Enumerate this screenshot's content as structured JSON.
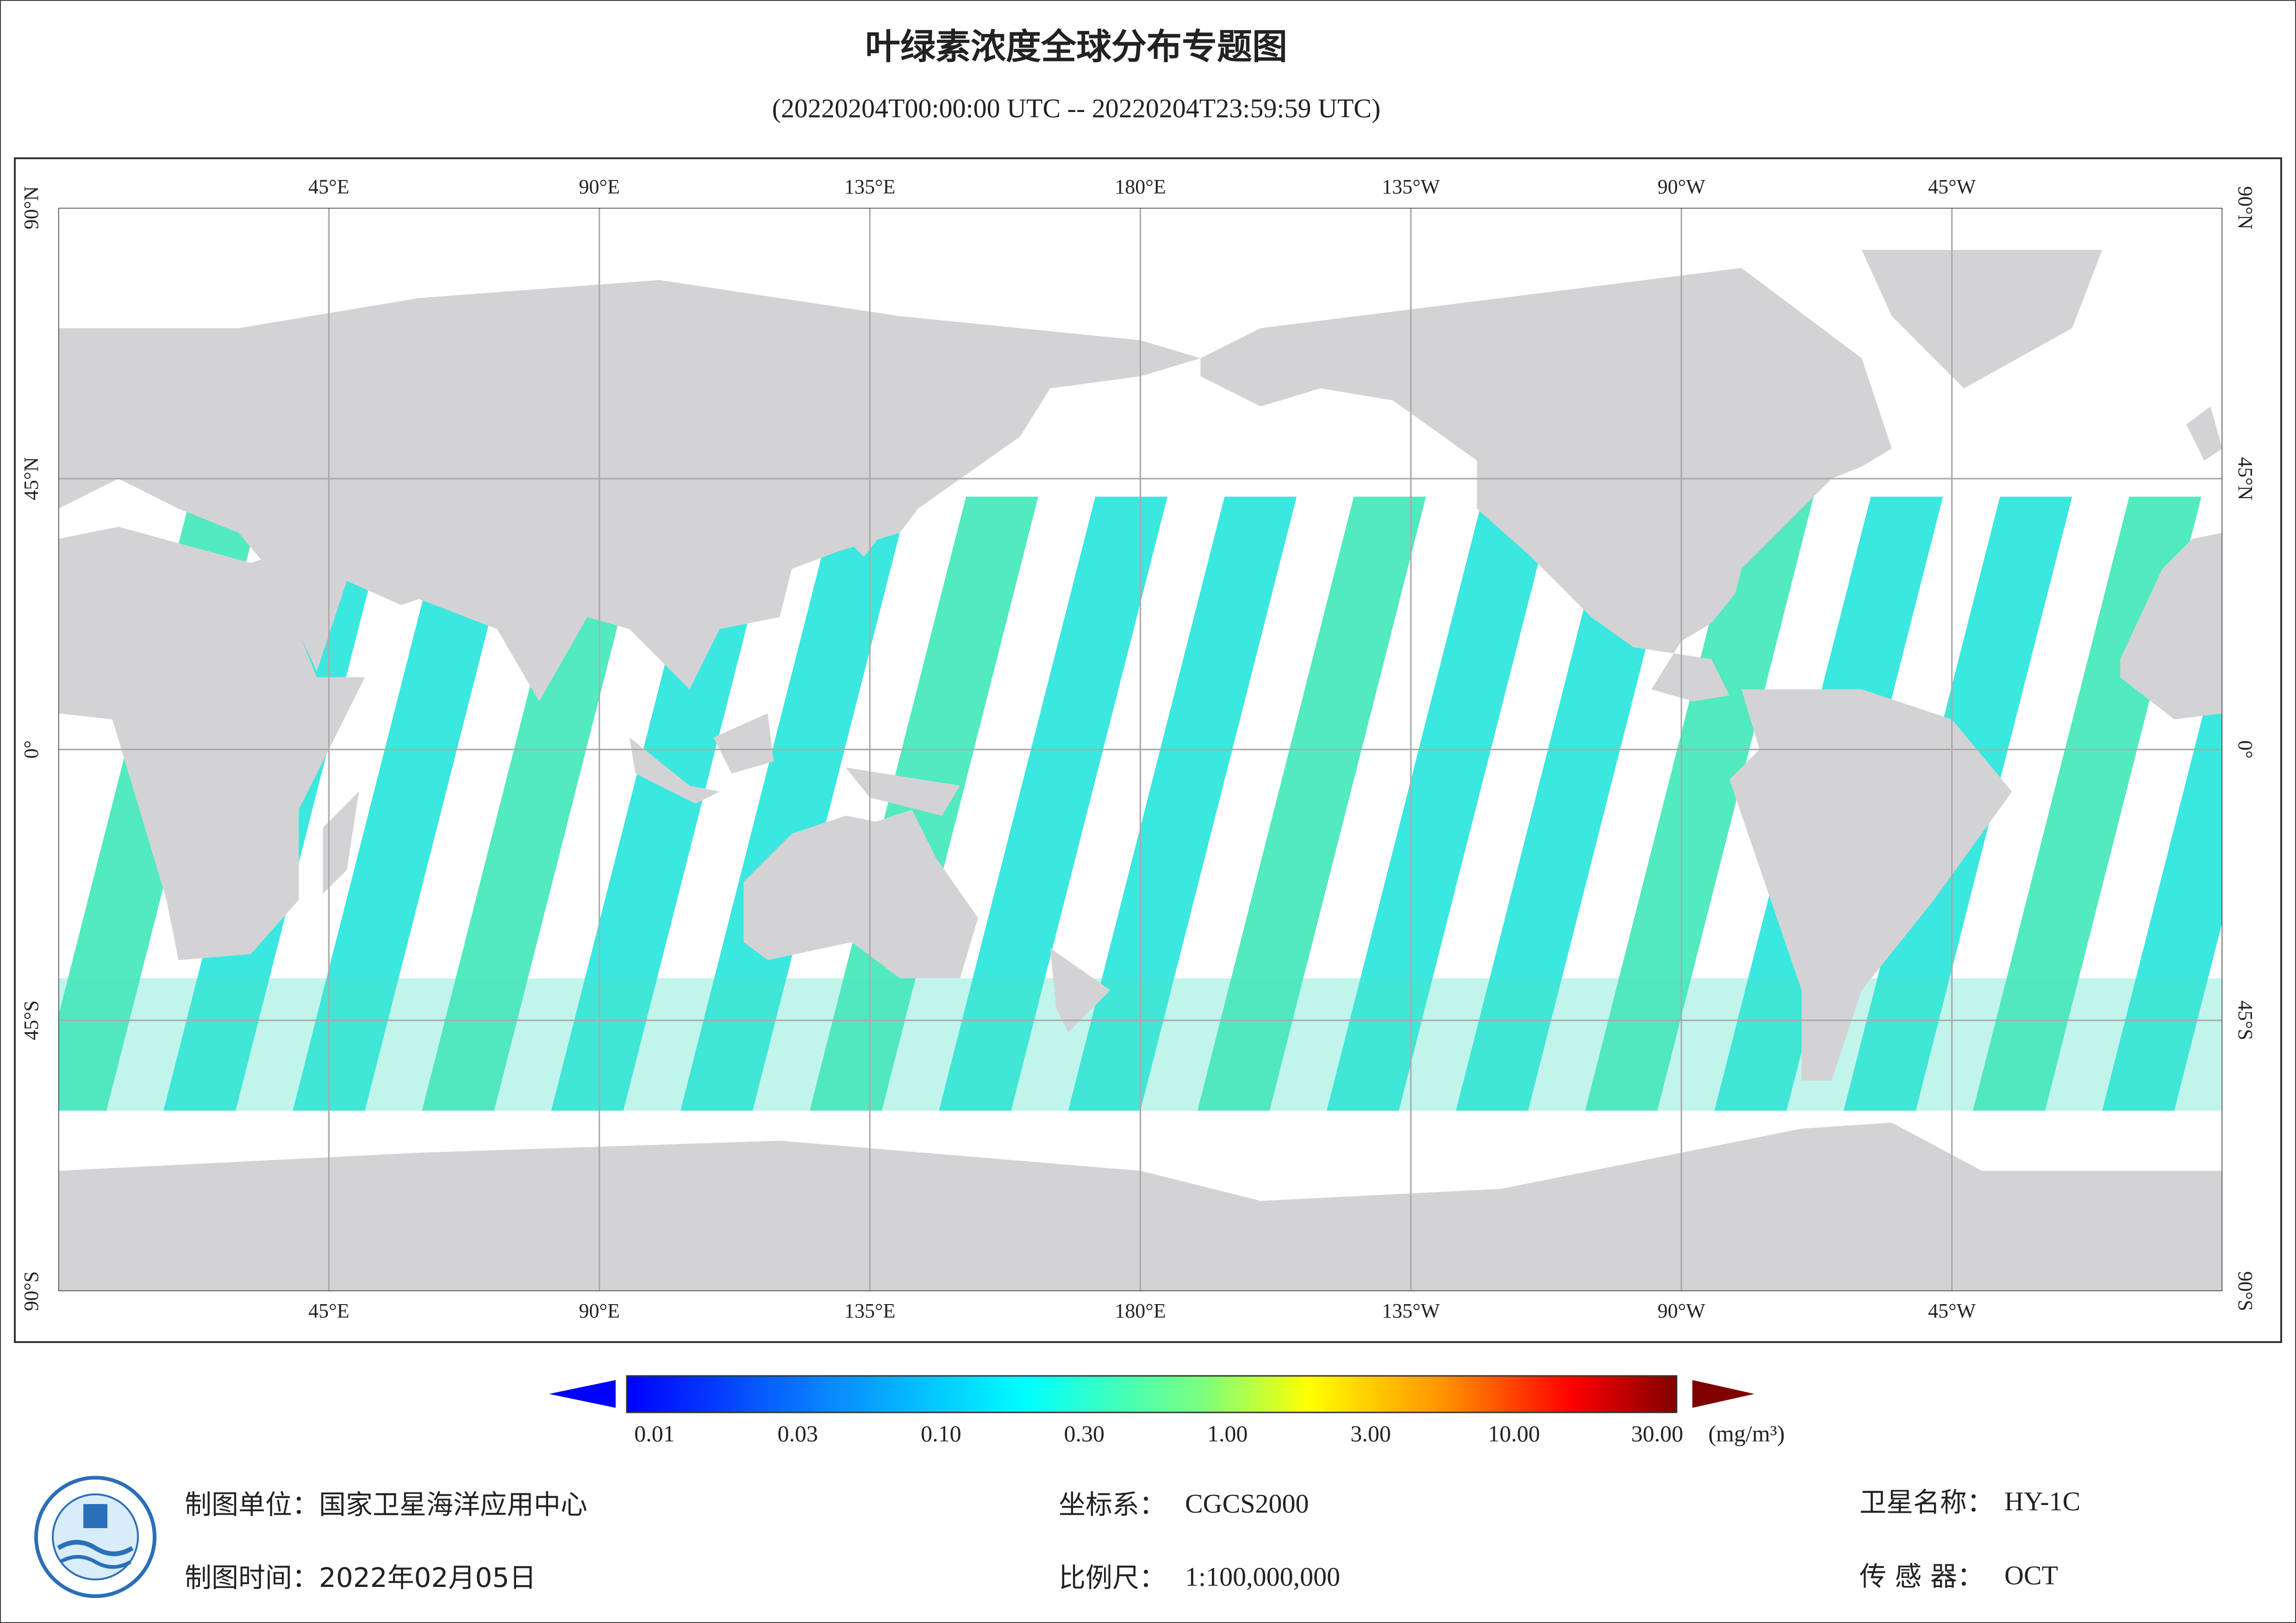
{
  "header": {
    "title": "叶绿素浓度全球分布专题图",
    "subtitle": "(20220204T00:00:00 UTC -- 20220204T23:59:59 UTC)"
  },
  "map": {
    "lon_labels": [
      "45°E",
      "90°E",
      "135°E",
      "180°E",
      "135°W",
      "90°W",
      "45°W"
    ],
    "lat_labels": [
      "90°N",
      "45°N",
      "0°",
      "45°S",
      "90°S"
    ]
  },
  "colorbar": {
    "labels": [
      "0.01",
      "0.03",
      "0.10",
      "0.30",
      "1.00",
      "3.00",
      "10.00",
      "30.00"
    ],
    "unit": "(mg/m³)"
  },
  "footer": {
    "producer": {
      "label": "制图单位：",
      "value": "国家卫星海洋应用中心"
    },
    "date": {
      "label": "制图时间：",
      "value": "2022年02月05日"
    },
    "crs": {
      "label": "坐标系：",
      "value": "CGCS2000"
    },
    "scale": {
      "label": "比例尺：",
      "value": "1:100,000,000"
    },
    "satellite": {
      "label": "卫星名称：",
      "value": "HY-1C"
    },
    "sensor": {
      "label": "传 感 器：",
      "value": "OCT"
    }
  }
}
